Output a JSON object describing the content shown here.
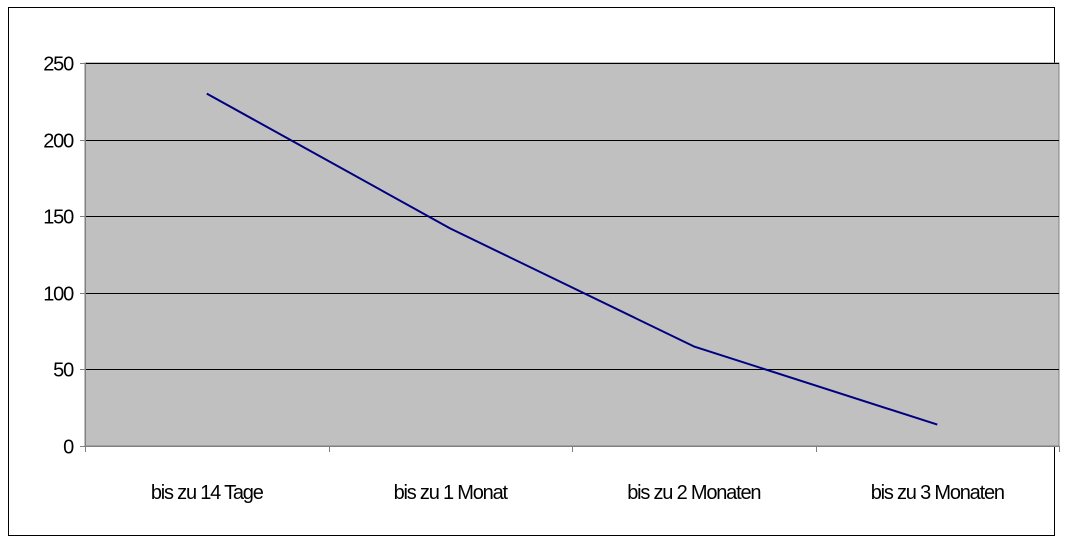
{
  "chart_data": {
    "type": "line",
    "title": "",
    "xlabel": "",
    "ylabel": "",
    "categories": [
      "bis zu 14 Tage",
      "bis zu 1 Monat",
      "bis zu 2 Monaten",
      "bis zu 3 Monaten"
    ],
    "series": [
      {
        "values": [
          230,
          142,
          65,
          14
        ]
      }
    ],
    "ylim": [
      0,
      250
    ],
    "yticks": [
      0,
      50,
      100,
      150,
      200,
      250
    ],
    "grid": true,
    "legend": "none",
    "colors": {
      "line": "#000080",
      "plot_background": "#c0c0c0",
      "gridline": "#000000",
      "axis": "#808080"
    }
  }
}
